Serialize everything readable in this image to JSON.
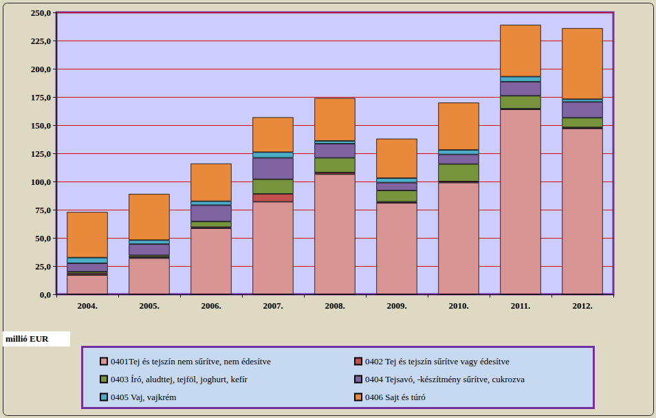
{
  "chart_data": {
    "type": "bar",
    "stacked": true,
    "grid": true,
    "legend": "bottom",
    "ylabel": "millió EUR",
    "categories": [
      "2004.",
      "2005.",
      "2006.",
      "2007.",
      "2008.",
      "2009.",
      "2010.",
      "2011.",
      "2012."
    ],
    "ylim": [
      0,
      250
    ],
    "yticks": [
      {
        "value": 0,
        "label": "0,0"
      },
      {
        "value": 25,
        "label": "25,0"
      },
      {
        "value": 50,
        "label": "50,0"
      },
      {
        "value": 75,
        "label": "75,0"
      },
      {
        "value": 100,
        "label": "100,0"
      },
      {
        "value": 125,
        "label": "125,0"
      },
      {
        "value": 150,
        "label": "150,0"
      },
      {
        "value": 175,
        "label": "175,0"
      },
      {
        "value": 200,
        "label": "200,0"
      },
      {
        "value": 225,
        "label": "225,0"
      },
      {
        "value": 250,
        "label": "250,0"
      }
    ],
    "series": [
      {
        "name": "0401Tej és tejszín nem sűrítve, nem édesítve",
        "color": "#d99594",
        "values": [
          17,
          32,
          58.5,
          82,
          106.5,
          81,
          99,
          164,
          147
        ]
      },
      {
        "name": "0402 Tej és tejszín sűrítve vagy édesítve",
        "color": "#c0504d",
        "values": [
          1.5,
          1,
          1,
          7,
          1.5,
          1,
          1,
          0.5,
          1
        ]
      },
      {
        "name": "0403 Író, aludttej, tejföl, joghurt, kefír",
        "color": "#77933c",
        "values": [
          1.5,
          1.5,
          5,
          13,
          13,
          10,
          15.5,
          11.5,
          8.5
        ]
      },
      {
        "name": "0404 Tejsavó, -készítmény sűrítve, cukrozva",
        "color": "#8064a2",
        "values": [
          7.5,
          10,
          14.5,
          19,
          12.5,
          7,
          8.5,
          12.5,
          14
        ]
      },
      {
        "name": "0405 Vaj, vajkrém",
        "color": "#4bacc6",
        "values": [
          5,
          3.5,
          3.5,
          5,
          2.5,
          4,
          4,
          4.5,
          2.5
        ]
      },
      {
        "name": "0406 Sajt és túró",
        "color": "#e8893c",
        "values": [
          40.5,
          41,
          33.5,
          31,
          38,
          35,
          42,
          46,
          63
        ]
      }
    ]
  }
}
